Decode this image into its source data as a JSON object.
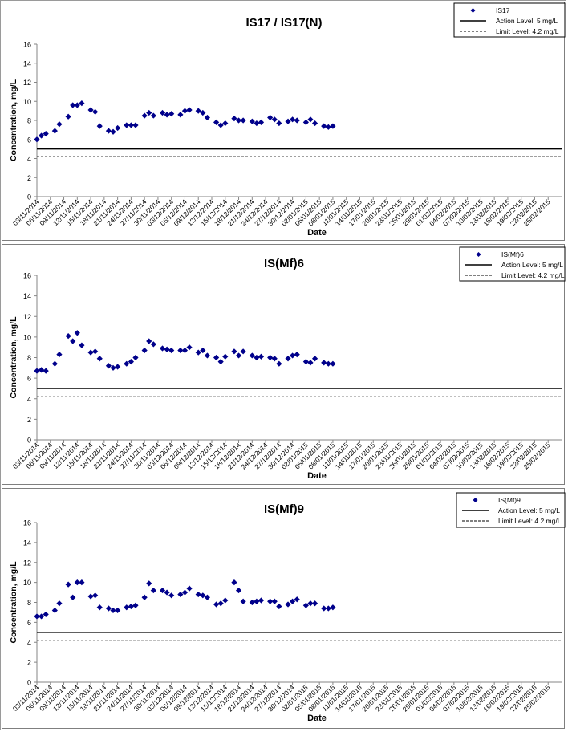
{
  "colors": {
    "marker": "#00008b",
    "action_line": "#000000",
    "limit_line": "#000000",
    "axis": "#868686"
  },
  "chart_data": [
    {
      "type": "scatter",
      "title": "IS17 / IS17(N)",
      "xlabel": "Date",
      "ylabel": "Concentration, mg/L",
      "ylim": [
        0,
        16
      ],
      "yticks": [
        "0",
        "2",
        "4",
        "6",
        "8",
        "10",
        "12",
        "14",
        "16"
      ],
      "xticks": [
        "03/11/2014",
        "06/11/2014",
        "09/11/2014",
        "12/11/2014",
        "15/11/2014",
        "18/11/2014",
        "21/11/2014",
        "24/11/2014",
        "27/11/2014",
        "30/11/2014",
        "03/12/2014",
        "06/12/2014",
        "09/12/2014",
        "12/12/2014",
        "15/12/2014",
        "18/12/2014",
        "21/12/2014",
        "24/12/2014",
        "27/12/2014",
        "30/12/2014",
        "02/01/2015",
        "05/01/2015",
        "08/01/2015",
        "11/01/2015",
        "14/01/2015",
        "17/01/2015",
        "20/01/2015",
        "23/01/2015",
        "26/01/2015",
        "29/01/2015",
        "01/02/2015",
        "04/02/2015",
        "07/02/2015",
        "10/02/2015",
        "13/02/2015",
        "16/02/2015",
        "19/02/2015",
        "22/02/2015",
        "25/02/2015"
      ],
      "grid": false,
      "legend_position": "top-right",
      "series": [
        {
          "name": "IS17",
          "marker": "diamond",
          "points": [
            [
              "03/11/2014",
              6.0
            ],
            [
              "04/11/2014",
              6.4
            ],
            [
              "05/11/2014",
              6.6
            ],
            [
              "07/11/2014",
              6.9
            ],
            [
              "08/11/2014",
              7.6
            ],
            [
              "10/11/2014",
              8.4
            ],
            [
              "11/11/2014",
              9.6
            ],
            [
              "12/11/2014",
              9.6
            ],
            [
              "13/11/2014",
              9.8
            ],
            [
              "15/11/2014",
              9.1
            ],
            [
              "16/11/2014",
              8.9
            ],
            [
              "17/11/2014",
              7.4
            ],
            [
              "19/11/2014",
              6.9
            ],
            [
              "20/11/2014",
              6.8
            ],
            [
              "21/11/2014",
              7.2
            ],
            [
              "23/11/2014",
              7.5
            ],
            [
              "24/11/2014",
              7.5
            ],
            [
              "25/11/2014",
              7.5
            ],
            [
              "27/11/2014",
              8.5
            ],
            [
              "28/11/2014",
              8.8
            ],
            [
              "29/11/2014",
              8.5
            ],
            [
              "01/12/2014",
              8.8
            ],
            [
              "02/12/2014",
              8.6
            ],
            [
              "03/12/2014",
              8.7
            ],
            [
              "05/12/2014",
              8.6
            ],
            [
              "06/12/2014",
              9.0
            ],
            [
              "07/12/2014",
              9.1
            ],
            [
              "09/12/2014",
              9.0
            ],
            [
              "10/12/2014",
              8.8
            ],
            [
              "11/12/2014",
              8.3
            ],
            [
              "13/12/2014",
              7.8
            ],
            [
              "14/12/2014",
              7.5
            ],
            [
              "15/12/2014",
              7.7
            ],
            [
              "17/12/2014",
              8.2
            ],
            [
              "18/12/2014",
              8.0
            ],
            [
              "19/12/2014",
              8.0
            ],
            [
              "21/12/2014",
              7.9
            ],
            [
              "22/12/2014",
              7.7
            ],
            [
              "23/12/2014",
              7.8
            ],
            [
              "25/12/2014",
              8.3
            ],
            [
              "26/12/2014",
              8.1
            ],
            [
              "27/12/2014",
              7.7
            ],
            [
              "29/12/2014",
              7.9
            ],
            [
              "30/12/2014",
              8.1
            ],
            [
              "31/12/2014",
              8.0
            ],
            [
              "02/01/2015",
              7.8
            ],
            [
              "03/01/2015",
              8.1
            ],
            [
              "04/01/2015",
              7.7
            ],
            [
              "06/01/2015",
              7.4
            ],
            [
              "07/01/2015",
              7.3
            ],
            [
              "08/01/2015",
              7.4
            ]
          ]
        },
        {
          "name": "Action Level: 5 mg/L",
          "line": "solid",
          "value": 5.0
        },
        {
          "name": "Limit Level: 4.2 mg/L",
          "line": "dashed",
          "value": 4.2
        }
      ]
    },
    {
      "type": "scatter",
      "title": "IS(Mf)6",
      "xlabel": "Date",
      "ylabel": "Concentration, mg/L",
      "ylim": [
        0,
        16
      ],
      "yticks": [
        "0",
        "2",
        "4",
        "6",
        "8",
        "10",
        "12",
        "14",
        "16"
      ],
      "xticks": [
        "03/11/2014",
        "06/11/2014",
        "09/11/2014",
        "12/11/2014",
        "15/11/2014",
        "18/11/2014",
        "21/11/2014",
        "24/11/2014",
        "27/11/2014",
        "30/11/2014",
        "03/12/2014",
        "06/12/2014",
        "09/12/2014",
        "12/12/2014",
        "15/12/2014",
        "18/12/2014",
        "21/12/2014",
        "24/12/2014",
        "27/12/2014",
        "30/12/2014",
        "02/01/2015",
        "05/01/2015",
        "08/01/2015",
        "11/01/2015",
        "14/01/2015",
        "17/01/2015",
        "20/01/2015",
        "23/01/2015",
        "26/01/2015",
        "29/01/2015",
        "01/02/2015",
        "04/02/2015",
        "07/02/2015",
        "10/02/2015",
        "13/02/2015",
        "16/02/2015",
        "19/02/2015",
        "22/02/2015",
        "25/02/2015"
      ],
      "grid": false,
      "legend_position": "top-right",
      "series": [
        {
          "name": "IS(Mf)6",
          "marker": "diamond",
          "points": [
            [
              "03/11/2014",
              6.7
            ],
            [
              "04/11/2014",
              6.8
            ],
            [
              "05/11/2014",
              6.7
            ],
            [
              "07/11/2014",
              7.4
            ],
            [
              "08/11/2014",
              8.3
            ],
            [
              "10/11/2014",
              10.1
            ],
            [
              "11/11/2014",
              9.6
            ],
            [
              "12/11/2014",
              10.4
            ],
            [
              "13/11/2014",
              9.2
            ],
            [
              "15/11/2014",
              8.5
            ],
            [
              "16/11/2014",
              8.6
            ],
            [
              "17/11/2014",
              7.9
            ],
            [
              "19/11/2014",
              7.2
            ],
            [
              "20/11/2014",
              7.0
            ],
            [
              "21/11/2014",
              7.1
            ],
            [
              "23/11/2014",
              7.4
            ],
            [
              "24/11/2014",
              7.6
            ],
            [
              "25/11/2014",
              8.0
            ],
            [
              "27/11/2014",
              8.7
            ],
            [
              "28/11/2014",
              9.6
            ],
            [
              "29/11/2014",
              9.3
            ],
            [
              "01/12/2014",
              8.9
            ],
            [
              "02/12/2014",
              8.8
            ],
            [
              "03/12/2014",
              8.7
            ],
            [
              "05/12/2014",
              8.7
            ],
            [
              "06/12/2014",
              8.7
            ],
            [
              "07/12/2014",
              9.0
            ],
            [
              "09/12/2014",
              8.5
            ],
            [
              "10/12/2014",
              8.7
            ],
            [
              "11/12/2014",
              8.2
            ],
            [
              "13/12/2014",
              8.0
            ],
            [
              "14/12/2014",
              7.6
            ],
            [
              "15/12/2014",
              8.1
            ],
            [
              "17/12/2014",
              8.6
            ],
            [
              "18/12/2014",
              8.2
            ],
            [
              "19/12/2014",
              8.6
            ],
            [
              "21/12/2014",
              8.2
            ],
            [
              "22/12/2014",
              8.0
            ],
            [
              "23/12/2014",
              8.1
            ],
            [
              "25/12/2014",
              8.0
            ],
            [
              "26/12/2014",
              7.9
            ],
            [
              "27/12/2014",
              7.4
            ],
            [
              "29/12/2014",
              7.9
            ],
            [
              "30/12/2014",
              8.2
            ],
            [
              "31/12/2014",
              8.3
            ],
            [
              "02/01/2015",
              7.6
            ],
            [
              "03/01/2015",
              7.5
            ],
            [
              "04/01/2015",
              7.9
            ],
            [
              "06/01/2015",
              7.5
            ],
            [
              "07/01/2015",
              7.4
            ],
            [
              "08/01/2015",
              7.4
            ]
          ]
        },
        {
          "name": "Action Level: 5 mg/L",
          "line": "solid",
          "value": 5.0
        },
        {
          "name": "Limit Level: 4.2 mg/L",
          "line": "dashed",
          "value": 4.2
        }
      ]
    },
    {
      "type": "scatter",
      "title": "IS(Mf)9",
      "xlabel": "Date",
      "ylabel": "Concentration, mg/L",
      "ylim": [
        0,
        16
      ],
      "yticks": [
        "0",
        "2",
        "4",
        "6",
        "8",
        "10",
        "12",
        "14",
        "16"
      ],
      "xticks": [
        "03/11/2014",
        "06/11/2014",
        "09/11/2014",
        "12/11/2014",
        "15/11/2014",
        "18/11/2014",
        "21/11/2014",
        "24/11/2014",
        "27/11/2014",
        "30/11/2014",
        "03/12/2014",
        "06/12/2014",
        "09/12/2014",
        "12/12/2014",
        "15/12/2014",
        "18/12/2014",
        "21/12/2014",
        "24/12/2014",
        "27/12/2014",
        "30/12/2014",
        "02/01/2015",
        "05/01/2015",
        "08/01/2015",
        "11/01/2015",
        "14/01/2015",
        "17/01/2015",
        "20/01/2015",
        "23/01/2015",
        "26/01/2015",
        "29/01/2015",
        "01/02/2015",
        "04/02/2015",
        "07/02/2015",
        "10/02/2015",
        "13/02/2015",
        "16/02/2015",
        "19/02/2015",
        "22/02/2015",
        "25/02/2015"
      ],
      "grid": false,
      "legend_position": "top-right",
      "series": [
        {
          "name": "IS(Mf)9",
          "marker": "diamond",
          "points": [
            [
              "03/11/2014",
              6.6
            ],
            [
              "04/11/2014",
              6.6
            ],
            [
              "05/11/2014",
              6.8
            ],
            [
              "07/11/2014",
              7.2
            ],
            [
              "08/11/2014",
              7.9
            ],
            [
              "10/11/2014",
              9.8
            ],
            [
              "11/11/2014",
              8.5
            ],
            [
              "12/11/2014",
              10.0
            ],
            [
              "13/11/2014",
              10.0
            ],
            [
              "15/11/2014",
              8.6
            ],
            [
              "16/11/2014",
              8.7
            ],
            [
              "17/11/2014",
              7.5
            ],
            [
              "19/11/2014",
              7.4
            ],
            [
              "20/11/2014",
              7.2
            ],
            [
              "21/11/2014",
              7.2
            ],
            [
              "23/11/2014",
              7.5
            ],
            [
              "24/11/2014",
              7.6
            ],
            [
              "25/11/2014",
              7.7
            ],
            [
              "27/11/2014",
              8.5
            ],
            [
              "28/11/2014",
              9.9
            ],
            [
              "29/11/2014",
              9.2
            ],
            [
              "01/12/2014",
              9.2
            ],
            [
              "02/12/2014",
              9.0
            ],
            [
              "03/12/2014",
              8.7
            ],
            [
              "05/12/2014",
              8.8
            ],
            [
              "06/12/2014",
              9.0
            ],
            [
              "07/12/2014",
              9.4
            ],
            [
              "09/12/2014",
              8.8
            ],
            [
              "10/12/2014",
              8.7
            ],
            [
              "11/12/2014",
              8.5
            ],
            [
              "13/12/2014",
              7.8
            ],
            [
              "14/12/2014",
              7.9
            ],
            [
              "15/12/2014",
              8.2
            ],
            [
              "17/12/2014",
              10.0
            ],
            [
              "18/12/2014",
              9.2
            ],
            [
              "19/12/2014",
              8.1
            ],
            [
              "21/12/2014",
              8.0
            ],
            [
              "22/12/2014",
              8.1
            ],
            [
              "23/12/2014",
              8.2
            ],
            [
              "25/12/2014",
              8.1
            ],
            [
              "26/12/2014",
              8.1
            ],
            [
              "27/12/2014",
              7.6
            ],
            [
              "29/12/2014",
              7.8
            ],
            [
              "30/12/2014",
              8.1
            ],
            [
              "31/12/2014",
              8.3
            ],
            [
              "02/01/2015",
              7.7
            ],
            [
              "03/01/2015",
              7.9
            ],
            [
              "04/01/2015",
              7.9
            ],
            [
              "06/01/2015",
              7.4
            ],
            [
              "07/01/2015",
              7.4
            ],
            [
              "08/01/2015",
              7.5
            ]
          ]
        },
        {
          "name": "Action Level: 5 mg/L",
          "line": "solid",
          "value": 5.0
        },
        {
          "name": "Limit Level: 4.2 mg/L",
          "line": "dashed",
          "value": 4.2
        }
      ]
    }
  ]
}
